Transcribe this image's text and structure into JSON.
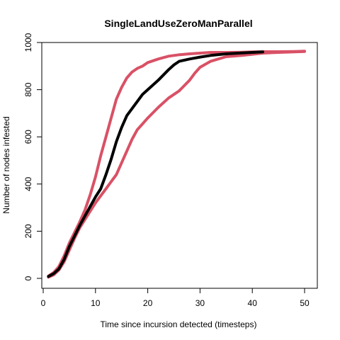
{
  "chart_data": {
    "type": "line",
    "title": "SingleLandUseZeroManParallel",
    "xlabel": "Time since incursion detected (timesteps)",
    "ylabel": "Number of nodes infested",
    "xlim": [
      0,
      51
    ],
    "ylim": [
      -20,
      1000
    ],
    "xticks": [
      0,
      10,
      20,
      30,
      40,
      50
    ],
    "yticks": [
      0,
      200,
      400,
      600,
      800,
      1000
    ],
    "grid": false,
    "legend": "none",
    "series": [
      {
        "color": "#d95166",
        "stroke": 4,
        "x": [
          1,
          2,
          3,
          4,
          5,
          6,
          7,
          8,
          9,
          10,
          11,
          12,
          13,
          14,
          15,
          16,
          17,
          18,
          19,
          20,
          22,
          24,
          26,
          28,
          30,
          32,
          35,
          38,
          40,
          42,
          45,
          48,
          50
        ],
        "y": [
          10,
          25,
          50,
          95,
          150,
          195,
          240,
          290,
          355,
          430,
          520,
          600,
          680,
          760,
          810,
          850,
          875,
          890,
          900,
          915,
          930,
          942,
          948,
          952,
          955,
          958,
          958,
          959,
          960,
          961,
          961,
          962,
          963
        ]
      },
      {
        "color": "#d95166",
        "stroke": 4,
        "x": [
          1,
          2,
          3,
          4,
          5,
          6,
          7,
          8,
          9,
          10,
          11,
          12,
          13,
          14,
          15,
          16,
          17,
          18,
          19,
          20,
          22,
          24,
          26,
          28,
          29,
          30,
          32,
          35,
          38,
          40,
          42,
          45,
          48,
          50
        ],
        "y": [
          5,
          15,
          35,
          70,
          120,
          170,
          215,
          250,
          285,
          320,
          350,
          380,
          410,
          440,
          490,
          540,
          590,
          630,
          655,
          680,
          725,
          765,
          795,
          840,
          870,
          895,
          920,
          940,
          945,
          950,
          955,
          958,
          960,
          962
        ]
      },
      {
        "color": "#000000",
        "stroke": 4,
        "x": [
          1,
          2,
          3,
          4,
          5,
          6,
          7,
          8,
          9,
          10,
          11,
          12,
          13,
          14,
          15,
          16,
          17,
          18,
          19,
          20,
          22,
          24,
          25,
          26,
          28,
          30,
          32,
          35,
          38,
          40,
          42
        ],
        "y": [
          8,
          20,
          40,
          80,
          135,
          180,
          225,
          265,
          305,
          345,
          380,
          440,
          505,
          580,
          640,
          690,
          720,
          750,
          780,
          800,
          840,
          885,
          905,
          920,
          930,
          938,
          945,
          952,
          956,
          958,
          960
        ]
      }
    ]
  }
}
